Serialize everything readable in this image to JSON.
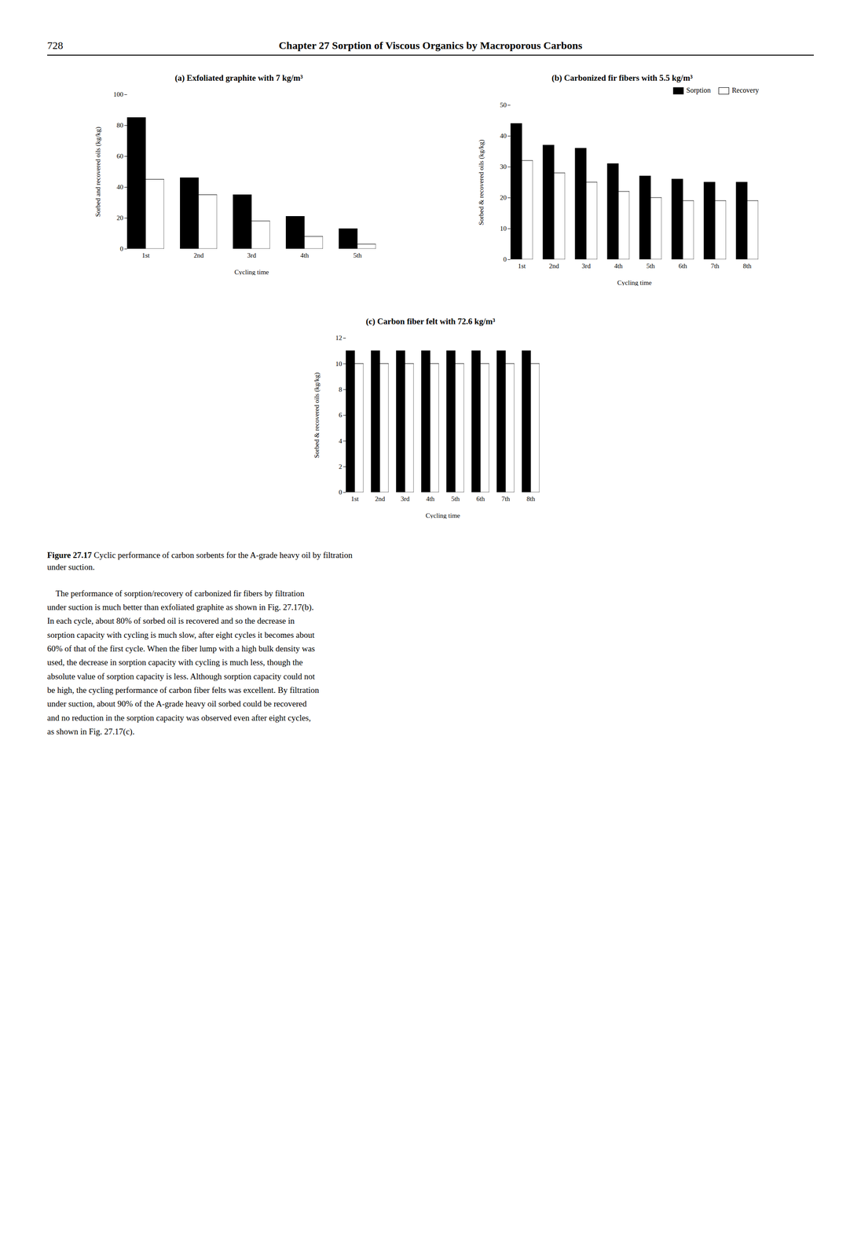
{
  "page_number": "728",
  "page_header": "Chapter 27 Sorption of Viscous Organics by Macroporous Carbons",
  "caption_label": "Figure 27.17",
  "caption": "Cyclic performance of carbon sorbents for the A-grade heavy oil by filtration\nunder suction.",
  "body_text": "    The performance of sorption/recovery of carbonized fir fibers by filtration\nunder suction is much better than exfoliated graphite as shown in Fig. 27.17(b).\nIn each cycle, about 80% of sorbed oil is recovered and so the decrease in\nsorption capacity with cycling is much slow, after eight cycles it becomes about\n60% of that of the first cycle. When the fiber lump with a high bulk density was\nused, the decrease in sorption capacity with cycling is much less, though the\nabsolute value of sorption capacity is less. Although sorption capacity could not\nbe high, the cycling performance of carbon fiber felts was excellent. By filtration\nunder suction, about 90% of the A-grade heavy oil sorbed could be recovered\nand no reduction in the sorption capacity was observed even after eight cycles,\nas shown in Fig. 27.17(c).",
  "chart_data": [
    {
      "type": "bar",
      "title": "(a) Exfoliated graphite with 7 kg/m³",
      "xlabel": "Cycling time",
      "ylabel": "Sorbed and recovered oils (kg/kg)",
      "categories": [
        "1st",
        "2nd",
        "3rd",
        "4th",
        "5th"
      ],
      "series": [
        {
          "name": "Sorption",
          "color": "#000000",
          "values": [
            85,
            46,
            35,
            21,
            13
          ]
        },
        {
          "name": "Recovery",
          "color": "#ffffff",
          "values": [
            45,
            35,
            18,
            8,
            3
          ]
        }
      ],
      "ylim": [
        0,
        100
      ],
      "yticks": [
        0,
        20,
        40,
        60,
        80,
        100
      ],
      "grid": false
    },
    {
      "type": "bar",
      "title": "(b) Carbonized fir fibers with 5.5 kg/m³",
      "xlabel": "Cycling time",
      "ylabel": "Sorbed & recovered oils (kg/kg)",
      "categories": [
        "1st",
        "2nd",
        "3rd",
        "4th",
        "5th",
        "6th",
        "7th",
        "8th"
      ],
      "series": [
        {
          "name": "Sorption",
          "color": "#000000",
          "values": [
            44,
            37,
            36,
            31,
            27,
            26,
            25,
            25
          ]
        },
        {
          "name": "Recovery",
          "color": "#ffffff",
          "values": [
            32,
            28,
            25,
            22,
            20,
            19,
            19,
            19
          ]
        }
      ],
      "ylim": [
        0,
        50
      ],
      "yticks": [
        0,
        10,
        20,
        30,
        40,
        50
      ],
      "grid": false,
      "legend": "upper right"
    },
    {
      "type": "bar",
      "title": "(c) Carbon fiber felt with 72.6 kg/m³",
      "xlabel": "Cycling time",
      "ylabel": "Sorbed & recovered oils (kg/kg)",
      "categories": [
        "1st",
        "2nd",
        "3rd",
        "4th",
        "5th",
        "6th",
        "7th",
        "8th"
      ],
      "series": [
        {
          "name": "Sorption",
          "color": "#000000",
          "values": [
            11,
            11,
            11,
            11,
            11,
            11,
            11,
            11
          ]
        },
        {
          "name": "Recovery",
          "color": "#ffffff",
          "values": [
            10,
            10,
            10,
            10,
            10,
            10,
            10,
            10
          ]
        }
      ],
      "ylim": [
        0,
        12
      ],
      "yticks": [
        0,
        2,
        4,
        6,
        8,
        10,
        12
      ],
      "grid": false
    }
  ]
}
